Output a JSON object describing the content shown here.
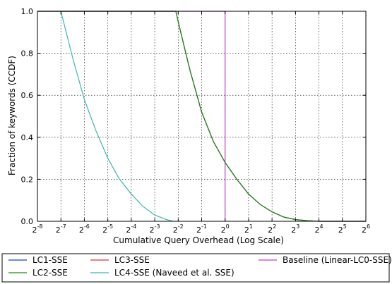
{
  "chart_data": {
    "type": "line",
    "title": "",
    "xlabel": "Cumulative Query Overhead (Log Scale)",
    "ylabel": "Fraction of keywords (CCDF)",
    "x_scale": "log2",
    "xlim_exponent": [
      -8,
      6
    ],
    "ylim": [
      0,
      1.0
    ],
    "grid": true,
    "legend_position": "below-plot",
    "x_ticks": [
      {
        "base": "2",
        "exp": "-8"
      },
      {
        "base": "2",
        "exp": "-7"
      },
      {
        "base": "2",
        "exp": "-6"
      },
      {
        "base": "2",
        "exp": "-5"
      },
      {
        "base": "2",
        "exp": "-4"
      },
      {
        "base": "2",
        "exp": "-3"
      },
      {
        "base": "2",
        "exp": "-2"
      },
      {
        "base": "2",
        "exp": "-1"
      },
      {
        "base": "2",
        "exp": "0"
      },
      {
        "base": "2",
        "exp": "1"
      },
      {
        "base": "2",
        "exp": "2"
      },
      {
        "base": "2",
        "exp": "3"
      },
      {
        "base": "2",
        "exp": "4"
      },
      {
        "base": "2",
        "exp": "5"
      },
      {
        "base": "2",
        "exp": "6"
      }
    ],
    "y_ticks": [
      "0.0",
      "0.2",
      "0.4",
      "0.6",
      "0.8",
      "1.0"
    ],
    "series": [
      {
        "name": "LC1-SSE",
        "color": "#1f3fd6",
        "log2_x": [
          -8,
          -2.1,
          -2.0,
          -1.5,
          -1.0,
          -0.5,
          0.0,
          0.5,
          1.0,
          1.5,
          2.0,
          2.5,
          3.0,
          3.5,
          4.0,
          6.0
        ],
        "y": [
          1.0,
          1.0,
          0.95,
          0.72,
          0.52,
          0.38,
          0.28,
          0.2,
          0.13,
          0.08,
          0.045,
          0.02,
          0.008,
          0.003,
          0.0,
          0.0
        ]
      },
      {
        "name": "LC2-SSE",
        "color": "#1a8a1a",
        "log2_x": [
          -8,
          -2.1,
          -2.0,
          -1.5,
          -1.0,
          -0.5,
          0.0,
          0.5,
          1.0,
          1.5,
          2.0,
          2.5,
          3.0,
          3.5,
          4.0,
          6.0
        ],
        "y": [
          1.0,
          1.0,
          0.95,
          0.72,
          0.52,
          0.38,
          0.28,
          0.2,
          0.13,
          0.08,
          0.045,
          0.02,
          0.008,
          0.003,
          0.0,
          0.0
        ]
      },
      {
        "name": "LC3-SSE",
        "color": "#e03030",
        "log2_x": [
          -8,
          -2.1,
          -2.0,
          -1.5,
          -1.0,
          -0.5,
          0.0,
          0.5,
          1.0,
          1.5,
          2.0,
          2.5,
          3.0,
          3.5,
          4.0,
          6.0
        ],
        "y": [
          1.0,
          1.0,
          0.95,
          0.72,
          0.52,
          0.38,
          0.28,
          0.2,
          0.13,
          0.08,
          0.045,
          0.02,
          0.008,
          0.003,
          0.0,
          0.0
        ]
      },
      {
        "name": "LC4-SSE (Naveed et al. SSE)",
        "color": "#3fb3b3",
        "log2_x": [
          -7.0,
          -6.5,
          -6.0,
          -5.5,
          -5.0,
          -4.5,
          -4.0,
          -3.5,
          -3.0,
          -2.5,
          -2.2
        ],
        "y": [
          1.0,
          0.78,
          0.58,
          0.43,
          0.3,
          0.2,
          0.13,
          0.07,
          0.03,
          0.008,
          0.0
        ]
      },
      {
        "name": "Baseline (Linear-LC0-SSE)",
        "color": "#c03cc8",
        "log2_x": [
          -7.0,
          0.0,
          0.0
        ],
        "y": [
          1.0,
          1.0,
          0.0
        ]
      }
    ]
  }
}
